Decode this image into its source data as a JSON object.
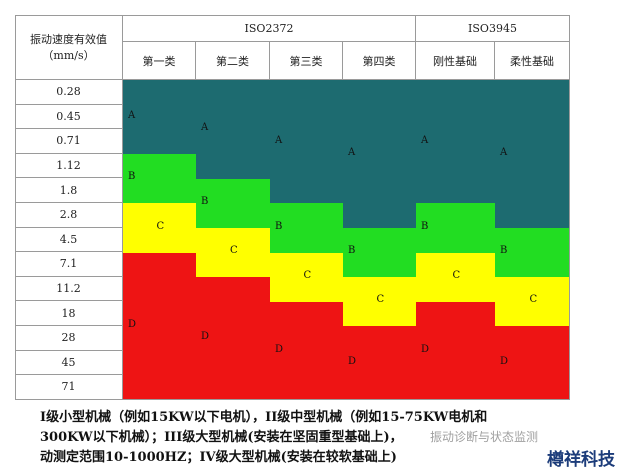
{
  "table": {
    "corner": "振动速度有效值\n（mm/s）",
    "groups": [
      "ISO2372",
      "ISO3945"
    ],
    "columns": [
      "第一类",
      "第二类",
      "第三类",
      "第四类",
      "刚性基础",
      "柔性基础"
    ],
    "rows": [
      "0.28",
      "0.45",
      "0.71",
      "1.12",
      "1.8",
      "2.8",
      "4.5",
      "7.1",
      "11.2",
      "18",
      "28",
      "45",
      "71"
    ],
    "zone_colors": {
      "A": "#1d6b70",
      "B": "#22dd22",
      "C": "#ffff00",
      "D": "#ee1414"
    },
    "zones": [
      [
        "A",
        "A",
        "A",
        "B",
        "B",
        "C",
        "C",
        "D",
        "D",
        "D",
        "D",
        "D",
        "D"
      ],
      [
        "A",
        "A",
        "A",
        "A",
        "B",
        "B",
        "C",
        "C",
        "D",
        "D",
        "D",
        "D",
        "D"
      ],
      [
        "A",
        "A",
        "A",
        "A",
        "A",
        "B",
        "B",
        "C",
        "C",
        "D",
        "D",
        "D",
        "D"
      ],
      [
        "A",
        "A",
        "A",
        "A",
        "A",
        "A",
        "B",
        "B",
        "C",
        "C",
        "D",
        "D",
        "D"
      ],
      [
        "A",
        "A",
        "A",
        "A",
        "A",
        "B",
        "B",
        "C",
        "C",
        "D",
        "D",
        "D",
        "D"
      ],
      [
        "A",
        "A",
        "A",
        "A",
        "A",
        "A",
        "B",
        "B",
        "C",
        "C",
        "D",
        "D",
        "D"
      ]
    ]
  },
  "footer": [
    "I级小型机械（例如15KW以下电机），II级中型机械（例如15-75KW电机和",
    "300KW以下机械）；III级大型机械(安装在坚固重型基础上)，",
    "动测定范围10-1000HZ；IV级大型机械(安装在较软基础上)"
  ],
  "watermark": "振动诊断与状态监测",
  "logo": "樽祥科技"
}
